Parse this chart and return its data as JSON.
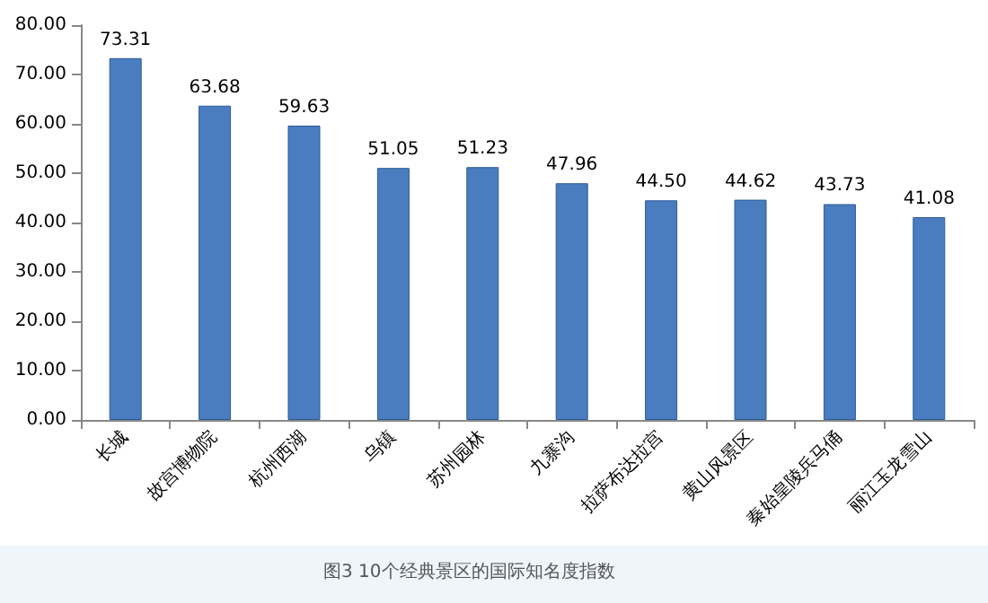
{
  "chart_data": {
    "type": "bar",
    "categories": [
      "长城",
      "故宫博物院",
      "杭州西湖",
      "乌镇",
      "苏州园林",
      "九寨沟",
      "拉萨布达拉宫",
      "黄山风景区",
      "秦始皇陵兵马俑",
      "丽江玉龙雪山"
    ],
    "values": [
      73.31,
      63.68,
      59.63,
      51.05,
      51.23,
      47.96,
      44.5,
      44.62,
      43.73,
      41.08
    ],
    "value_labels": [
      "73.31",
      "63.68",
      "59.63",
      "51.05",
      "51.23",
      "47.96",
      "44.50",
      "44.62",
      "43.73",
      "41.08"
    ],
    "color": "#4a7cc0",
    "ylim": [
      0,
      80
    ],
    "yticks": [
      {
        "value": 0,
        "label": "0.00"
      },
      {
        "value": 10,
        "label": "10.00"
      },
      {
        "value": 20,
        "label": "20.00"
      },
      {
        "value": 30,
        "label": "30.00"
      },
      {
        "value": 40,
        "label": "40.00"
      },
      {
        "value": 50,
        "label": "50.00"
      },
      {
        "value": 60,
        "label": "60.00"
      },
      {
        "value": 70,
        "label": "70.00"
      },
      {
        "value": 80,
        "label": "80.00"
      }
    ],
    "grid": false,
    "annotations": [
      "图3 10个经典景区的国际知名度指数"
    ]
  }
}
